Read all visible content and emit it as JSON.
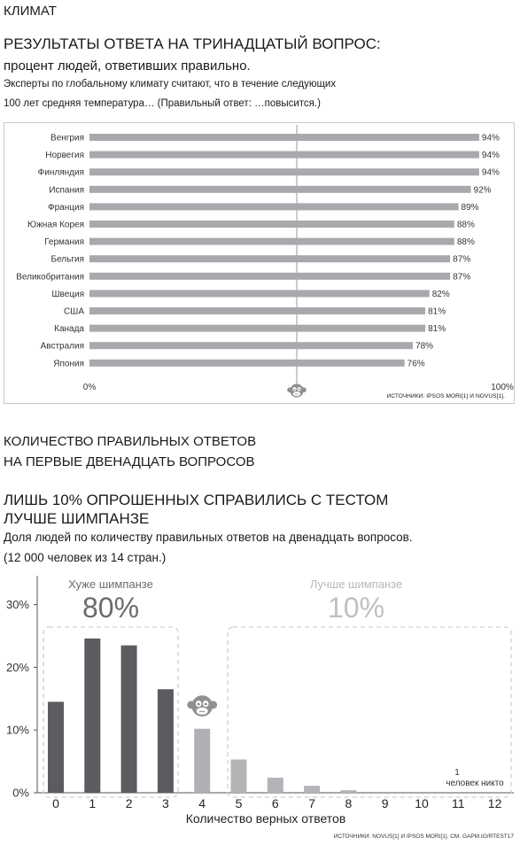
{
  "section_label": "КЛИМАТ",
  "chart1": {
    "heading": "РЕЗУЛЬТАТЫ ОТВЕТА НА ТРИНАДЦАТЫЙ ВОПРОС:",
    "subheading": "процент людей, ответивших правильно.",
    "description_line1": "Эксперты по глобальному климату считают, что в течение следующих",
    "description_line2": "100 лет средняя температура… (Правильный ответ: …повысится.)",
    "sources": "ИСТОЧНИКИ: IPSOS MORI[1] И NOVUS[1].",
    "axis_min_label": "0%",
    "axis_max_label": "100%"
  },
  "chart2": {
    "title_line1": "КОЛИЧЕСТВО ПРАВИЛЬНЫХ ОТВЕТОВ",
    "title_line2": "НА ПЕРВЫЕ ДВЕНАДЦАТЬ ВОПРОСОВ",
    "heading_line1": "ЛИШЬ 10% ОПРОШЕННЫХ СПРАВИЛИСЬ С ТЕСТОМ",
    "heading_line2": "ЛУЧШЕ ШИМПАНЗЕ",
    "description_line1": "Доля людей по количеству правильных ответов на двенадцать вопросов.",
    "description_line2": "(12 000 человек из 14 стран.)",
    "worse_label": "Хуже шимпанзе",
    "worse_value": "80%",
    "better_label": "Лучше шимпанзе",
    "better_value": "10%",
    "note_count": "1",
    "note_text": "человек никто",
    "xlabel": "Количество верных ответов",
    "sources": "ИСТОЧНИКИ: NOVUS[1] И IPSOS MORI[1]. СМ. GAPM.IO/RTEST17"
  },
  "colors": {
    "bar_gray": "#a9a9ad",
    "bar_dark": "#5b5b60",
    "bar_light": "#b4b4b8",
    "monkey": "#909090",
    "dashed_box": "#cfcfcf",
    "axis": "#555555"
  },
  "chart_data": [
    {
      "type": "bar",
      "orientation": "horizontal",
      "categories": [
        "Венгрия",
        "Норвегия",
        "Финляндия",
        "Испания",
        "Франция",
        "Южная Корея",
        "Германия",
        "Бельгия",
        "Великобритания",
        "Швеция",
        "США",
        "Канада",
        "Австралия",
        "Япония"
      ],
      "values": [
        94,
        94,
        94,
        92,
        89,
        88,
        88,
        87,
        87,
        82,
        81,
        81,
        78,
        76
      ],
      "value_labels": [
        "94%",
        "94%",
        "94%",
        "92%",
        "89%",
        "88%",
        "88%",
        "87%",
        "87%",
        "82%",
        "81%",
        "81%",
        "78%",
        "76%"
      ],
      "xlim": [
        0,
        100
      ],
      "reference_line": 50
    },
    {
      "type": "bar",
      "categories": [
        "0",
        "1",
        "2",
        "3",
        "4",
        "5",
        "6",
        "7",
        "8",
        "9",
        "10",
        "11",
        "12"
      ],
      "values": [
        14.5,
        24.6,
        23.5,
        16.5,
        10.2,
        5.3,
        2.4,
        1.1,
        0.4,
        0,
        0,
        0,
        0
      ],
      "ylim": [
        0,
        35
      ],
      "yticks": [
        "0%",
        "10%",
        "20%",
        "30%"
      ],
      "xlabel": "Количество верных ответов",
      "groups": [
        {
          "name": "Хуже шимпанзе",
          "categories": [
            "0",
            "1",
            "2",
            "3"
          ],
          "share": "80%"
        },
        {
          "name": "Лучше шимпанзе",
          "categories": [
            "5",
            "6",
            "7",
            "8",
            "9",
            "10",
            "11",
            "12"
          ],
          "share": "10%"
        }
      ]
    }
  ]
}
